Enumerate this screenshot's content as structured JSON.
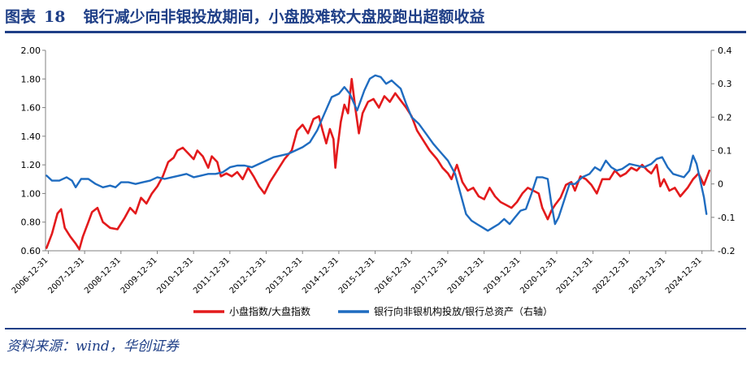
{
  "header": {
    "figure_label": "图表",
    "figure_number": "18",
    "title_text": "银行减少向非银投放期间，小盘股难较大盘股跑出超额收益"
  },
  "footer": {
    "source": "资料来源：wind，华创证券"
  },
  "colors": {
    "title": "#1f3f87",
    "series_small_large": "#e31a1c",
    "series_bank": "#1f6cc0",
    "axis": "#808080"
  },
  "chart_data": {
    "type": "line",
    "x_labels": [
      "2006-12-31",
      "2007-12-31",
      "2008-12-31",
      "2009-12-31",
      "2010-12-31",
      "2011-12-31",
      "2012-12-31",
      "2013-12-31",
      "2014-12-31",
      "2015-12-31",
      "2016-12-31",
      "2017-12-31",
      "2018-12-31",
      "2019-12-31",
      "2020-12-31",
      "2021-12-31",
      "2022-12-31",
      "2023-12-31",
      "2024-12-31"
    ],
    "x_range": [
      2006.92,
      2025.25
    ],
    "y_left": {
      "min": 0.6,
      "max": 2.0,
      "ticks": [
        "0.60",
        "0.80",
        "1.00",
        "1.20",
        "1.40",
        "1.60",
        "1.80",
        "2.00"
      ]
    },
    "y_right": {
      "min": -0.2,
      "max": 0.4,
      "ticks": [
        "-0.2",
        "-0.1",
        "0",
        "0.1",
        "0.2",
        "0.3",
        "0.4"
      ]
    },
    "series": [
      {
        "name": "小盘指数/大盘指数",
        "axis": "left",
        "points": [
          [
            2006.95,
            0.62
          ],
          [
            2007.1,
            0.72
          ],
          [
            2007.25,
            0.86
          ],
          [
            2007.35,
            0.89
          ],
          [
            2007.45,
            0.76
          ],
          [
            2007.6,
            0.7
          ],
          [
            2007.75,
            0.65
          ],
          [
            2007.85,
            0.61
          ],
          [
            2007.95,
            0.7
          ],
          [
            2008.1,
            0.8
          ],
          [
            2008.2,
            0.87
          ],
          [
            2008.35,
            0.9
          ],
          [
            2008.5,
            0.8
          ],
          [
            2008.7,
            0.76
          ],
          [
            2008.9,
            0.75
          ],
          [
            2009.1,
            0.83
          ],
          [
            2009.25,
            0.9
          ],
          [
            2009.4,
            0.86
          ],
          [
            2009.55,
            0.97
          ],
          [
            2009.7,
            0.93
          ],
          [
            2009.85,
            1.0
          ],
          [
            2010.0,
            1.05
          ],
          [
            2010.15,
            1.12
          ],
          [
            2010.3,
            1.22
          ],
          [
            2010.45,
            1.25
          ],
          [
            2010.55,
            1.3
          ],
          [
            2010.7,
            1.32
          ],
          [
            2010.85,
            1.28
          ],
          [
            2011.0,
            1.24
          ],
          [
            2011.1,
            1.3
          ],
          [
            2011.25,
            1.26
          ],
          [
            2011.4,
            1.18
          ],
          [
            2011.5,
            1.26
          ],
          [
            2011.65,
            1.22
          ],
          [
            2011.75,
            1.12
          ],
          [
            2011.9,
            1.14
          ],
          [
            2012.05,
            1.12
          ],
          [
            2012.2,
            1.15
          ],
          [
            2012.35,
            1.1
          ],
          [
            2012.5,
            1.18
          ],
          [
            2012.65,
            1.12
          ],
          [
            2012.8,
            1.05
          ],
          [
            2012.95,
            1.0
          ],
          [
            2013.1,
            1.08
          ],
          [
            2013.3,
            1.16
          ],
          [
            2013.5,
            1.24
          ],
          [
            2013.7,
            1.3
          ],
          [
            2013.85,
            1.44
          ],
          [
            2014.0,
            1.48
          ],
          [
            2014.15,
            1.42
          ],
          [
            2014.3,
            1.52
          ],
          [
            2014.45,
            1.54
          ],
          [
            2014.55,
            1.44
          ],
          [
            2014.65,
            1.35
          ],
          [
            2014.75,
            1.45
          ],
          [
            2014.85,
            1.38
          ],
          [
            2014.9,
            1.18
          ],
          [
            2014.95,
            1.3
          ],
          [
            2015.05,
            1.5
          ],
          [
            2015.15,
            1.62
          ],
          [
            2015.25,
            1.56
          ],
          [
            2015.35,
            1.8
          ],
          [
            2015.45,
            1.6
          ],
          [
            2015.55,
            1.42
          ],
          [
            2015.65,
            1.56
          ],
          [
            2015.8,
            1.64
          ],
          [
            2015.95,
            1.66
          ],
          [
            2016.1,
            1.6
          ],
          [
            2016.25,
            1.68
          ],
          [
            2016.4,
            1.64
          ],
          [
            2016.55,
            1.7
          ],
          [
            2016.7,
            1.65
          ],
          [
            2016.85,
            1.6
          ],
          [
            2017.0,
            1.54
          ],
          [
            2017.15,
            1.44
          ],
          [
            2017.3,
            1.38
          ],
          [
            2017.5,
            1.3
          ],
          [
            2017.7,
            1.24
          ],
          [
            2017.85,
            1.18
          ],
          [
            2018.0,
            1.14
          ],
          [
            2018.1,
            1.1
          ],
          [
            2018.25,
            1.2
          ],
          [
            2018.4,
            1.08
          ],
          [
            2018.55,
            1.02
          ],
          [
            2018.7,
            1.04
          ],
          [
            2018.85,
            0.98
          ],
          [
            2019.0,
            0.96
          ],
          [
            2019.15,
            1.04
          ],
          [
            2019.3,
            0.98
          ],
          [
            2019.45,
            0.94
          ],
          [
            2019.6,
            0.92
          ],
          [
            2019.75,
            0.9
          ],
          [
            2019.9,
            0.94
          ],
          [
            2020.05,
            1.0
          ],
          [
            2020.2,
            1.04
          ],
          [
            2020.35,
            1.02
          ],
          [
            2020.5,
            1.0
          ],
          [
            2020.6,
            0.9
          ],
          [
            2020.75,
            0.82
          ],
          [
            2020.85,
            0.88
          ],
          [
            2020.95,
            0.92
          ],
          [
            2021.1,
            0.97
          ],
          [
            2021.25,
            1.06
          ],
          [
            2021.4,
            1.08
          ],
          [
            2021.5,
            1.02
          ],
          [
            2021.65,
            1.12
          ],
          [
            2021.8,
            1.1
          ],
          [
            2021.95,
            1.06
          ],
          [
            2022.1,
            1.0
          ],
          [
            2022.25,
            1.1
          ],
          [
            2022.45,
            1.1
          ],
          [
            2022.6,
            1.16
          ],
          [
            2022.75,
            1.12
          ],
          [
            2022.9,
            1.14
          ],
          [
            2023.05,
            1.18
          ],
          [
            2023.2,
            1.16
          ],
          [
            2023.35,
            1.2
          ],
          [
            2023.5,
            1.16
          ],
          [
            2023.6,
            1.14
          ],
          [
            2023.75,
            1.2
          ],
          [
            2023.85,
            1.05
          ],
          [
            2023.95,
            1.1
          ],
          [
            2024.1,
            1.02
          ],
          [
            2024.25,
            1.04
          ],
          [
            2024.4,
            0.98
          ],
          [
            2024.6,
            1.04
          ],
          [
            2024.75,
            1.1
          ],
          [
            2024.9,
            1.14
          ],
          [
            2025.05,
            1.06
          ],
          [
            2025.2,
            1.16
          ]
        ]
      },
      {
        "name": "银行向非银机构投放/银行总资产（右轴）",
        "axis": "right",
        "points": [
          [
            2006.95,
            0.025
          ],
          [
            2007.1,
            0.01
          ],
          [
            2007.3,
            0.01
          ],
          [
            2007.5,
            0.02
          ],
          [
            2007.65,
            0.01
          ],
          [
            2007.75,
            -0.01
          ],
          [
            2007.9,
            0.015
          ],
          [
            2008.1,
            0.015
          ],
          [
            2008.3,
            0.0
          ],
          [
            2008.5,
            -0.01
          ],
          [
            2008.7,
            -0.005
          ],
          [
            2008.85,
            -0.01
          ],
          [
            2009.0,
            0.005
          ],
          [
            2009.2,
            0.005
          ],
          [
            2009.4,
            0.0
          ],
          [
            2009.6,
            0.005
          ],
          [
            2009.8,
            0.01
          ],
          [
            2010.0,
            0.02
          ],
          [
            2010.2,
            0.015
          ],
          [
            2010.4,
            0.02
          ],
          [
            2010.6,
            0.025
          ],
          [
            2010.8,
            0.03
          ],
          [
            2011.0,
            0.02
          ],
          [
            2011.2,
            0.025
          ],
          [
            2011.4,
            0.03
          ],
          [
            2011.6,
            0.03
          ],
          [
            2011.8,
            0.035
          ],
          [
            2012.0,
            0.05
          ],
          [
            2012.2,
            0.055
          ],
          [
            2012.4,
            0.055
          ],
          [
            2012.6,
            0.05
          ],
          [
            2012.8,
            0.06
          ],
          [
            2013.0,
            0.07
          ],
          [
            2013.2,
            0.08
          ],
          [
            2013.4,
            0.085
          ],
          [
            2013.6,
            0.09
          ],
          [
            2013.8,
            0.1
          ],
          [
            2014.0,
            0.11
          ],
          [
            2014.2,
            0.125
          ],
          [
            2014.4,
            0.16
          ],
          [
            2014.6,
            0.21
          ],
          [
            2014.8,
            0.26
          ],
          [
            2015.0,
            0.27
          ],
          [
            2015.15,
            0.29
          ],
          [
            2015.3,
            0.27
          ],
          [
            2015.5,
            0.22
          ],
          [
            2015.7,
            0.28
          ],
          [
            2015.85,
            0.315
          ],
          [
            2016.0,
            0.325
          ],
          [
            2016.15,
            0.32
          ],
          [
            2016.3,
            0.3
          ],
          [
            2016.45,
            0.31
          ],
          [
            2016.55,
            0.3
          ],
          [
            2016.7,
            0.285
          ],
          [
            2016.85,
            0.24
          ],
          [
            2017.0,
            0.2
          ],
          [
            2017.2,
            0.18
          ],
          [
            2017.4,
            0.15
          ],
          [
            2017.6,
            0.12
          ],
          [
            2017.8,
            0.095
          ],
          [
            2018.0,
            0.07
          ],
          [
            2018.2,
            0.03
          ],
          [
            2018.35,
            -0.03
          ],
          [
            2018.5,
            -0.09
          ],
          [
            2018.65,
            -0.11
          ],
          [
            2018.8,
            -0.12
          ],
          [
            2018.95,
            -0.13
          ],
          [
            2019.1,
            -0.14
          ],
          [
            2019.25,
            -0.13
          ],
          [
            2019.4,
            -0.12
          ],
          [
            2019.55,
            -0.105
          ],
          [
            2019.7,
            -0.12
          ],
          [
            2019.85,
            -0.1
          ],
          [
            2020.0,
            -0.08
          ],
          [
            2020.15,
            -0.075
          ],
          [
            2020.3,
            -0.03
          ],
          [
            2020.45,
            0.02
          ],
          [
            2020.6,
            0.02
          ],
          [
            2020.75,
            0.015
          ],
          [
            2020.85,
            -0.06
          ],
          [
            2020.95,
            -0.12
          ],
          [
            2021.05,
            -0.1
          ],
          [
            2021.2,
            -0.05
          ],
          [
            2021.35,
            0.0
          ],
          [
            2021.5,
            0.0
          ],
          [
            2021.7,
            0.02
          ],
          [
            2021.9,
            0.03
          ],
          [
            2022.05,
            0.05
          ],
          [
            2022.2,
            0.04
          ],
          [
            2022.35,
            0.07
          ],
          [
            2022.5,
            0.05
          ],
          [
            2022.65,
            0.04
          ],
          [
            2022.8,
            0.045
          ],
          [
            2023.0,
            0.06
          ],
          [
            2023.2,
            0.055
          ],
          [
            2023.4,
            0.05
          ],
          [
            2023.6,
            0.06
          ],
          [
            2023.75,
            0.075
          ],
          [
            2023.9,
            0.08
          ],
          [
            2024.05,
            0.05
          ],
          [
            2024.2,
            0.03
          ],
          [
            2024.35,
            0.025
          ],
          [
            2024.5,
            0.02
          ],
          [
            2024.65,
            0.04
          ],
          [
            2024.75,
            0.085
          ],
          [
            2024.85,
            0.06
          ],
          [
            2024.95,
            0.01
          ],
          [
            2025.05,
            -0.04
          ],
          [
            2025.12,
            -0.09
          ]
        ]
      }
    ]
  }
}
